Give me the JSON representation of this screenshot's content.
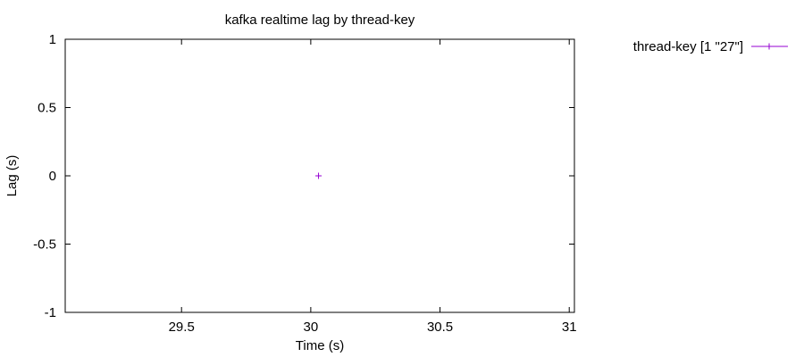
{
  "chart_data": {
    "type": "scatter",
    "title": "kafka realtime lag by thread-key",
    "xlabel": "Time (s)",
    "ylabel": "Lag (s)",
    "xlim": [
      29.05,
      31.02
    ],
    "ylim": [
      -1,
      1
    ],
    "x_ticks": [
      29.5,
      30,
      30.5,
      31
    ],
    "y_ticks": [
      -1,
      -0.5,
      0,
      0.5,
      1
    ],
    "x_tick_labels": [
      "29.5",
      "30",
      "30.5",
      "31"
    ],
    "y_tick_labels": [
      "-1",
      "-0.5",
      "0",
      "0.5",
      "1"
    ],
    "grid": false,
    "legend_position": "outside-top-right",
    "series": [
      {
        "name": "thread-key [1 \"27\"]",
        "color": "#9400d3",
        "marker": "plus",
        "points": [
          {
            "x": 30.03,
            "y": 0
          }
        ]
      }
    ]
  }
}
